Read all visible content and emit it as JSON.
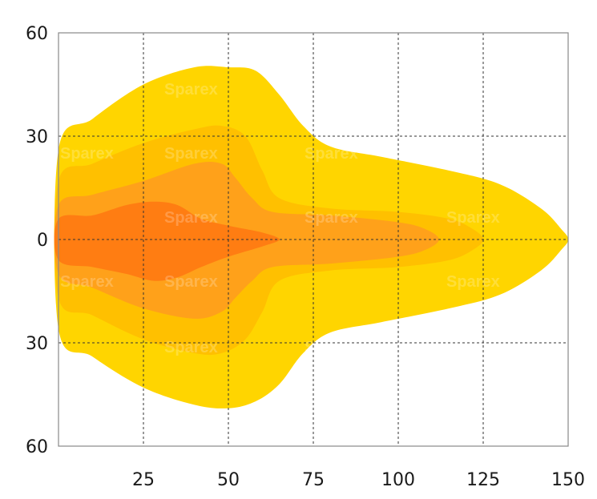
{
  "chart_data": {
    "type": "area",
    "title": "",
    "xlabel": "",
    "ylabel": "",
    "xlim": [
      0,
      150
    ],
    "ylim": [
      -60,
      60
    ],
    "grid": true,
    "x_ticks": [
      {
        "value": 25,
        "label": "25"
      },
      {
        "value": 50,
        "label": "50"
      },
      {
        "value": 75,
        "label": "75"
      },
      {
        "value": 100,
        "label": "100"
      },
      {
        "value": 125,
        "label": "125"
      },
      {
        "value": 150,
        "label": "150"
      }
    ],
    "y_ticks": [
      {
        "value": 60,
        "label": "60"
      },
      {
        "value": 30,
        "label": "30"
      },
      {
        "value": 0,
        "label": "0"
      },
      {
        "value": -30,
        "label": "30"
      },
      {
        "value": -60,
        "label": "60"
      }
    ],
    "zones": [
      {
        "color": "#FFD500",
        "outline": [
          [
            0,
            26
          ],
          [
            10,
            35
          ],
          [
            25,
            45
          ],
          [
            40,
            50
          ],
          [
            50,
            50
          ],
          [
            58,
            49
          ],
          [
            65,
            42
          ],
          [
            72,
            33
          ],
          [
            80,
            27
          ],
          [
            95,
            24
          ],
          [
            115,
            20
          ],
          [
            130,
            16
          ],
          [
            142,
            9
          ],
          [
            148,
            3
          ],
          [
            150,
            0
          ],
          [
            148,
            -3
          ],
          [
            142,
            -9
          ],
          [
            130,
            -16
          ],
          [
            115,
            -20
          ],
          [
            95,
            -24
          ],
          [
            80,
            -27
          ],
          [
            72,
            -33
          ],
          [
            65,
            -42
          ],
          [
            58,
            -47
          ],
          [
            50,
            -49
          ],
          [
            40,
            -48
          ],
          [
            25,
            -43
          ],
          [
            10,
            -34
          ],
          [
            0,
            -26
          ]
        ]
      },
      {
        "color": "#FFC000",
        "outline": [
          [
            0,
            17
          ],
          [
            10,
            22
          ],
          [
            25,
            28
          ],
          [
            40,
            32
          ],
          [
            48,
            33
          ],
          [
            55,
            30
          ],
          [
            60,
            20
          ],
          [
            65,
            12
          ],
          [
            80,
            9
          ],
          [
            100,
            8
          ],
          [
            115,
            6
          ],
          [
            122,
            3
          ],
          [
            125,
            0
          ],
          [
            122,
            -3
          ],
          [
            115,
            -6
          ],
          [
            100,
            -8
          ],
          [
            80,
            -9
          ],
          [
            65,
            -12
          ],
          [
            60,
            -21
          ],
          [
            55,
            -29
          ],
          [
            48,
            -33
          ],
          [
            40,
            -33
          ],
          [
            25,
            -29
          ],
          [
            10,
            -22
          ],
          [
            0,
            -17
          ]
        ]
      },
      {
        "color": "#FFA11A",
        "outline": [
          [
            0,
            10
          ],
          [
            10,
            13
          ],
          [
            25,
            17
          ],
          [
            40,
            22
          ],
          [
            48,
            22
          ],
          [
            52,
            18
          ],
          [
            57,
            12
          ],
          [
            63,
            8
          ],
          [
            80,
            7
          ],
          [
            100,
            5
          ],
          [
            108,
            3
          ],
          [
            112,
            0
          ],
          [
            108,
            -3
          ],
          [
            100,
            -5
          ],
          [
            80,
            -7
          ],
          [
            63,
            -8
          ],
          [
            57,
            -12
          ],
          [
            52,
            -17
          ],
          [
            48,
            -21
          ],
          [
            40,
            -23
          ],
          [
            25,
            -20
          ],
          [
            10,
            -14
          ],
          [
            0,
            -10
          ]
        ]
      },
      {
        "color": "#FF7D12",
        "outline": [
          [
            0,
            6
          ],
          [
            10,
            7
          ],
          [
            20,
            10
          ],
          [
            28,
            11
          ],
          [
            35,
            10
          ],
          [
            42,
            6
          ],
          [
            50,
            4
          ],
          [
            60,
            2
          ],
          [
            65,
            0
          ],
          [
            60,
            -2
          ],
          [
            50,
            -5
          ],
          [
            42,
            -8
          ],
          [
            35,
            -11
          ],
          [
            28,
            -12
          ],
          [
            20,
            -10
          ],
          [
            10,
            -8
          ],
          [
            0,
            -6
          ]
        ]
      }
    ],
    "watermark": "Sparex"
  }
}
